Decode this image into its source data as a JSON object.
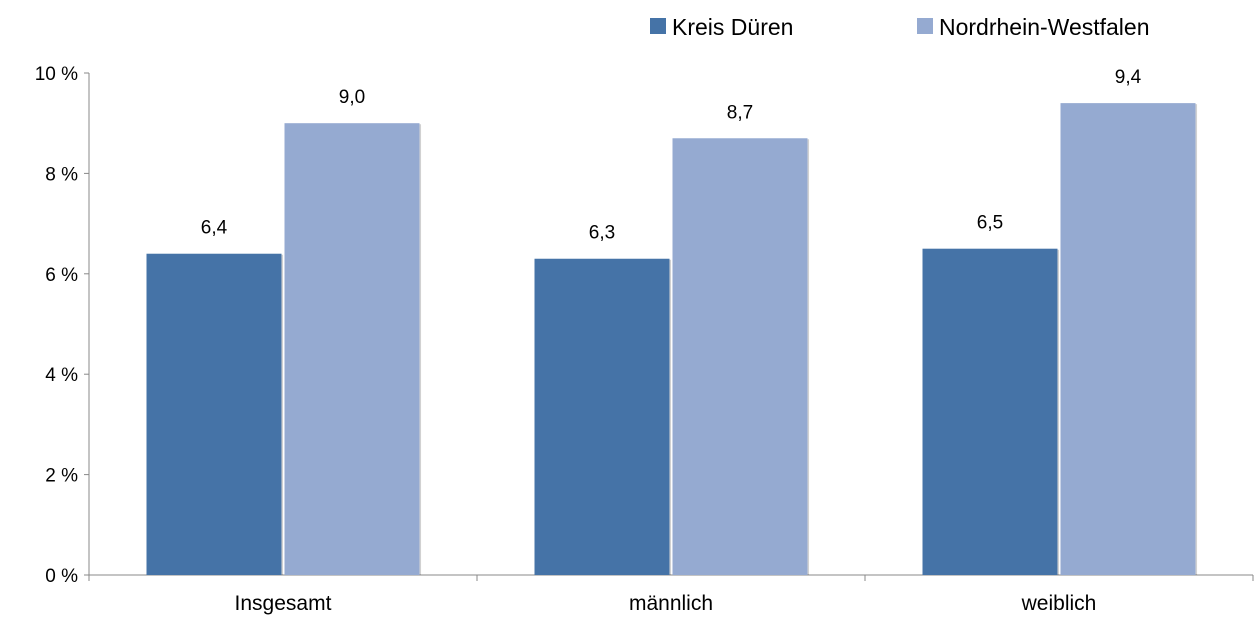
{
  "chart_data": {
    "type": "bar",
    "categories": [
      "Insgesamt",
      "männlich",
      "weiblich"
    ],
    "series": [
      {
        "name": "Kreis Düren",
        "values": [
          6.4,
          6.3,
          6.5
        ],
        "labels": [
          "6,4",
          "6,3",
          "6,5"
        ],
        "color": "#4573a7"
      },
      {
        "name": "Nordrhein-Westfalen",
        "values": [
          9.0,
          8.7,
          9.4
        ],
        "labels": [
          "9,0",
          "8,7",
          "9,4"
        ],
        "color": "#95aad1"
      }
    ],
    "yticks": [
      0,
      2,
      4,
      6,
      8,
      10
    ],
    "ytick_labels": [
      "0 %",
      "2 %",
      "4 %",
      "6 %",
      "8 %",
      "10 %"
    ],
    "ylim": [
      0,
      10
    ],
    "grid": false,
    "legend_position": "top-right"
  }
}
